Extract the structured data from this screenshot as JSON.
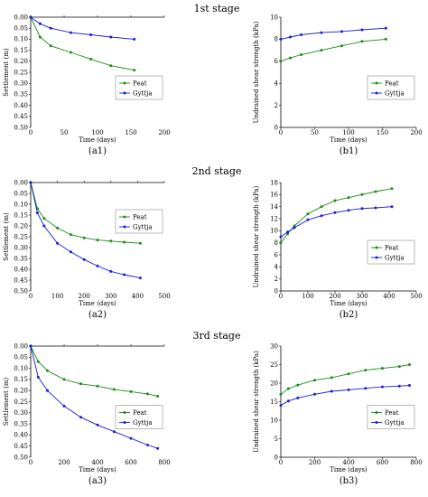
{
  "stages": [
    "1st stage",
    "2nd stage",
    "3rd stage"
  ],
  "colors": {
    "peat": "#1a8c1a",
    "gyttja": "#1c1cd6"
  },
  "chart_data": [
    {
      "id": "a1",
      "label": "(a1)",
      "type": "line",
      "xlabel": "Time (days)",
      "ylabel": "Settlement (m)",
      "xlim": [
        0,
        200
      ],
      "xticks": [
        0,
        50,
        100,
        150,
        200
      ],
      "ylim": [
        0,
        0.5
      ],
      "yticks": [
        "0.00",
        "0.05",
        "0.10",
        "0.15",
        "0.20",
        "0.25",
        "0.30",
        "0.35",
        "0.40",
        "0.45",
        "0.50"
      ],
      "y_inverted": true,
      "legend": "right-middle",
      "series": [
        {
          "name": "Peat",
          "color": "peat",
          "x": [
            0,
            14,
            30,
            60,
            90,
            120,
            155
          ],
          "y": [
            0,
            0.09,
            0.13,
            0.16,
            0.19,
            0.22,
            0.24
          ]
        },
        {
          "name": "Gyttja",
          "color": "gyttja",
          "x": [
            0,
            14,
            30,
            60,
            90,
            120,
            155
          ],
          "y": [
            0,
            0.03,
            0.05,
            0.07,
            0.08,
            0.09,
            0.1
          ]
        }
      ]
    },
    {
      "id": "b1",
      "label": "(b1)",
      "type": "line",
      "xlabel": "Time (days)",
      "ylabel": "Undrained shear strength (kPa)",
      "xlim": [
        0,
        200
      ],
      "xticks": [
        0,
        50,
        100,
        150,
        200
      ],
      "ylim": [
        0,
        10
      ],
      "yticks": [
        0,
        2,
        4,
        6,
        8,
        10
      ],
      "y_inverted": false,
      "legend": "right-middle",
      "series": [
        {
          "name": "Peat",
          "color": "peat",
          "x": [
            0,
            14,
            30,
            60,
            90,
            120,
            155
          ],
          "y": [
            6,
            6.3,
            6.6,
            7.0,
            7.4,
            7.8,
            8.0
          ]
        },
        {
          "name": "Gyttja",
          "color": "gyttja",
          "x": [
            0,
            14,
            30,
            60,
            90,
            120,
            155
          ],
          "y": [
            8,
            8.2,
            8.4,
            8.6,
            8.7,
            8.85,
            9.0
          ]
        }
      ]
    },
    {
      "id": "a2",
      "label": "(a2)",
      "type": "line",
      "xlabel": "Time (days)",
      "ylabel": "Settlement (m)",
      "xlim": [
        0,
        500
      ],
      "xticks": [
        0,
        100,
        200,
        300,
        400,
        500
      ],
      "ylim": [
        0,
        0.5
      ],
      "yticks": [
        "0.00",
        "0.05",
        "0.10",
        "0.15",
        "0.20",
        "0.25",
        "0.30",
        "0.35",
        "0.40",
        "0.45",
        "0.50"
      ],
      "y_inverted": true,
      "legend": "right-top",
      "series": [
        {
          "name": "Peat",
          "color": "peat",
          "x": [
            0,
            25,
            50,
            100,
            150,
            200,
            250,
            300,
            350,
            410
          ],
          "y": [
            0,
            0.12,
            0.165,
            0.21,
            0.24,
            0.255,
            0.265,
            0.27,
            0.275,
            0.28
          ]
        },
        {
          "name": "Gyttja",
          "color": "gyttja",
          "x": [
            0,
            25,
            50,
            100,
            150,
            200,
            250,
            300,
            350,
            410
          ],
          "y": [
            0,
            0.14,
            0.2,
            0.28,
            0.32,
            0.355,
            0.385,
            0.41,
            0.425,
            0.44
          ]
        }
      ]
    },
    {
      "id": "b2",
      "label": "(b2)",
      "type": "line",
      "xlabel": "Time (days)",
      "ylabel": "Undrained shear strength (kPa)",
      "xlim": [
        0,
        500
      ],
      "xticks": [
        0,
        100,
        200,
        300,
        400,
        500
      ],
      "ylim": [
        0,
        18
      ],
      "yticks": [
        0,
        2,
        4,
        6,
        8,
        10,
        12,
        14,
        16,
        18
      ],
      "y_inverted": false,
      "legend": "right-middle",
      "series": [
        {
          "name": "Peat",
          "color": "peat",
          "x": [
            0,
            25,
            50,
            100,
            150,
            200,
            250,
            300,
            350,
            410
          ],
          "y": [
            8,
            9.5,
            10.8,
            12.8,
            14.0,
            15.0,
            15.5,
            16.0,
            16.5,
            17.0
          ]
        },
        {
          "name": "Gyttja",
          "color": "gyttja",
          "x": [
            0,
            25,
            50,
            100,
            150,
            200,
            250,
            300,
            350,
            410
          ],
          "y": [
            9,
            9.8,
            10.5,
            11.8,
            12.5,
            13.0,
            13.4,
            13.7,
            13.8,
            14.0
          ]
        }
      ]
    },
    {
      "id": "a3",
      "label": "(a3)",
      "type": "line",
      "xlabel": "Time (days)",
      "ylabel": "Settlement (m)",
      "xlim": [
        0,
        800
      ],
      "xticks": [
        0,
        200,
        400,
        600,
        800
      ],
      "ylim": [
        0,
        0.5
      ],
      "yticks": [
        "0.00",
        "0.05",
        "0.10",
        "0.15",
        "0.20",
        "0.25",
        "0.30",
        "0.35",
        "0.40",
        "0.45",
        "0.50"
      ],
      "y_inverted": true,
      "legend": "right-middle",
      "series": [
        {
          "name": "Peat",
          "color": "peat",
          "x": [
            0,
            45,
            100,
            200,
            300,
            400,
            500,
            600,
            700,
            760
          ],
          "y": [
            0,
            0.07,
            0.11,
            0.15,
            0.17,
            0.18,
            0.195,
            0.205,
            0.215,
            0.225
          ]
        },
        {
          "name": "Gyttja",
          "color": "gyttja",
          "x": [
            0,
            45,
            100,
            200,
            300,
            400,
            500,
            600,
            700,
            760
          ],
          "y": [
            0,
            0.14,
            0.2,
            0.27,
            0.32,
            0.355,
            0.385,
            0.415,
            0.445,
            0.46
          ]
        }
      ]
    },
    {
      "id": "b3",
      "label": "(b3)",
      "type": "line",
      "xlabel": "Time (days)",
      "ylabel": "Undrained shear strength (kPa)",
      "xlim": [
        0,
        800
      ],
      "xticks": [
        0,
        200,
        400,
        600,
        800
      ],
      "ylim": [
        0,
        30
      ],
      "yticks": [
        0,
        5,
        10,
        15,
        20,
        25,
        30
      ],
      "y_inverted": false,
      "legend": "right-middle",
      "series": [
        {
          "name": "Peat",
          "color": "peat",
          "x": [
            0,
            45,
            100,
            200,
            300,
            400,
            500,
            600,
            700,
            760
          ],
          "y": [
            17,
            18.5,
            19.5,
            20.8,
            21.5,
            22.5,
            23.5,
            24.0,
            24.5,
            25.0
          ]
        },
        {
          "name": "Gyttja",
          "color": "gyttja",
          "x": [
            0,
            45,
            100,
            200,
            300,
            400,
            500,
            600,
            700,
            760
          ],
          "y": [
            14,
            15.2,
            16.0,
            17.0,
            17.8,
            18.2,
            18.6,
            19.0,
            19.2,
            19.4
          ]
        }
      ]
    }
  ]
}
